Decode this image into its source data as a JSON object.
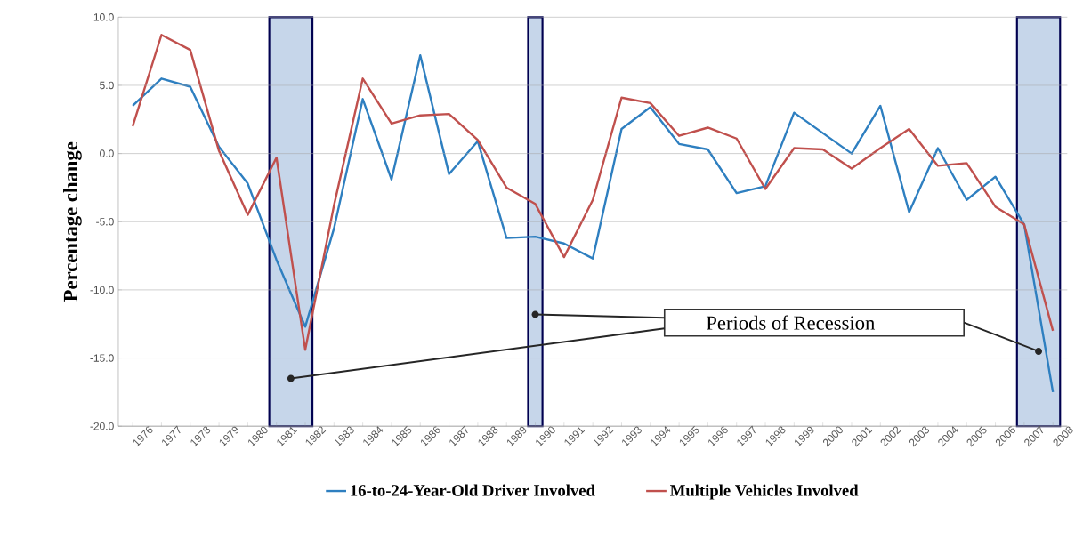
{
  "chart_data": {
    "type": "line",
    "ylabel": "Percentage change",
    "categories": [
      "1976",
      "1977",
      "1978",
      "1979",
      "1980",
      "1981",
      "1982",
      "1983",
      "1984",
      "1985",
      "1986",
      "1987",
      "1988",
      "1989",
      "1990",
      "1991",
      "1992",
      "1993",
      "1994",
      "1995",
      "1996",
      "1997",
      "1998",
      "1999",
      "2000",
      "2001",
      "2002",
      "2003",
      "2004",
      "2005",
      "2006",
      "2007",
      "2008"
    ],
    "series": [
      {
        "name": "16-to-24-Year-Old Driver Involved",
        "color": "#2e7fc0",
        "values": [
          3.5,
          5.5,
          4.9,
          0.5,
          -2.2,
          -7.8,
          -12.7,
          -5.5,
          4.0,
          -1.9,
          7.2,
          -1.5,
          0.9,
          -6.2,
          -6.1,
          -6.6,
          -7.7,
          1.8,
          3.4,
          0.7,
          0.3,
          -2.9,
          -2.4,
          3.0,
          1.5,
          0.0,
          3.5,
          -4.3,
          0.4,
          -3.4,
          -1.7,
          -5.2,
          -17.5
        ]
      },
      {
        "name": "Multiple Vehicles Involved",
        "color": "#c0504d",
        "values": [
          2.0,
          8.7,
          7.6,
          0.2,
          -4.5,
          -0.3,
          -14.4,
          -3.8,
          5.5,
          2.2,
          2.8,
          2.9,
          1.0,
          -2.5,
          -3.7,
          -7.6,
          -3.4,
          4.1,
          3.7,
          1.3,
          1.9,
          1.1,
          -2.6,
          0.4,
          0.3,
          -1.1,
          0.4,
          1.8,
          -0.9,
          -0.7,
          -3.9,
          -5.2,
          -13.0
        ]
      }
    ],
    "ylim": [
      -20,
      10
    ],
    "yticks": [
      {
        "value": -20,
        "label": "-20.0"
      },
      {
        "value": -15,
        "label": "-15.0"
      },
      {
        "value": -10,
        "label": "-10.0"
      },
      {
        "value": -5,
        "label": "-5.0"
      },
      {
        "value": 0,
        "label": "0.0"
      },
      {
        "value": 5,
        "label": "5.0"
      },
      {
        "value": 10,
        "label": "10.0"
      }
    ],
    "bands": [
      {
        "axis": "x",
        "from": "1981",
        "to": "1982",
        "color": "#c6d6ea"
      },
      {
        "axis": "x",
        "from": "1990",
        "to": "1990",
        "color": "#c6d6ea"
      },
      {
        "axis": "x",
        "from": "2007",
        "to": "2008",
        "color": "#c6d6ea"
      }
    ],
    "annotations": [
      "Periods of Recession"
    ],
    "grid": "y",
    "legend": "bottom",
    "marker": "none",
    "line_style": "solid"
  }
}
